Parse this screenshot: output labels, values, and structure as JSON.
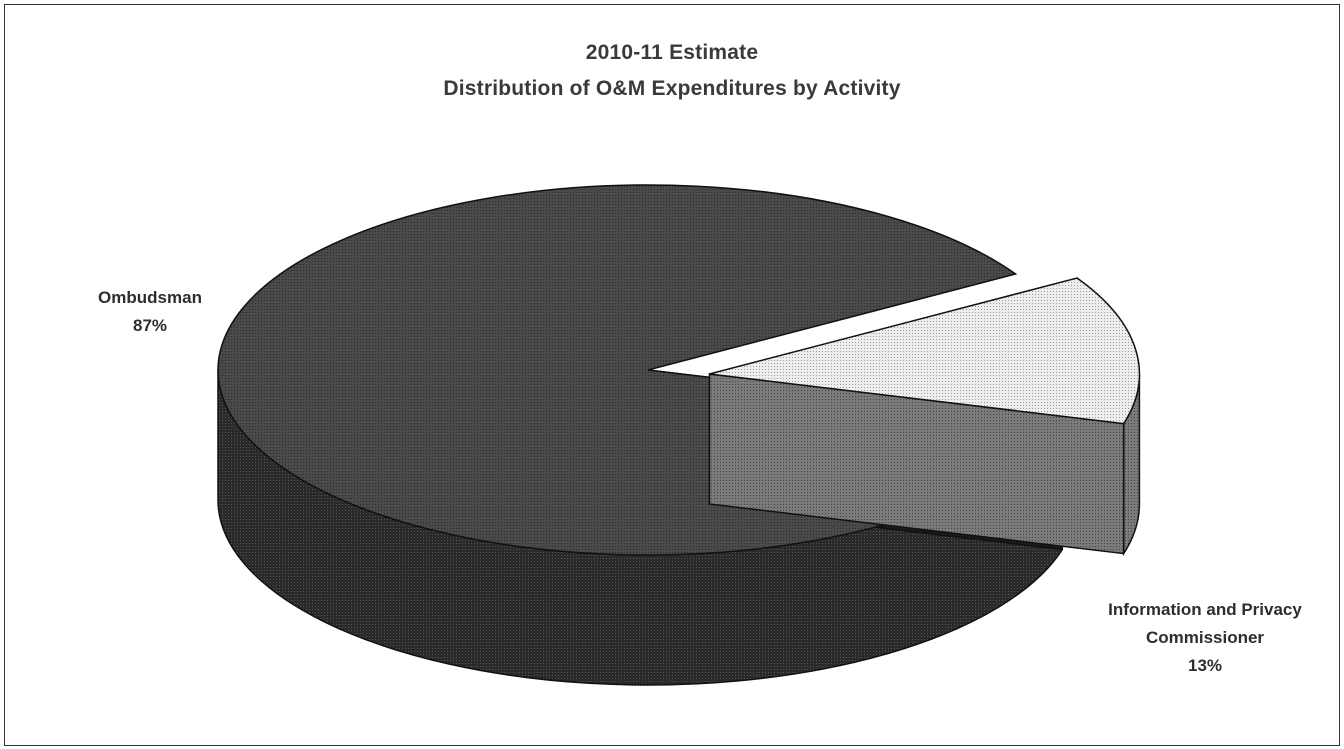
{
  "chart_data": {
    "type": "pie",
    "title": "2010-11 Estimate",
    "subtitle": "Distribution of O&M Expenditures by Activity",
    "slices": [
      {
        "name": "Ombudsman",
        "value": 87,
        "label_line1": "Ombudsman",
        "label_line2": "",
        "pct_text": "87%",
        "color": "#3d3d3d",
        "exploded": false
      },
      {
        "name": "Information and Privacy Commissioner",
        "value": 13,
        "label_line1": "Information and Privacy",
        "label_line2": "Commissioner",
        "pct_text": "13%",
        "color": "#e8e8e8",
        "exploded": true
      }
    ],
    "style": "3d-exploded",
    "legend": "none"
  }
}
